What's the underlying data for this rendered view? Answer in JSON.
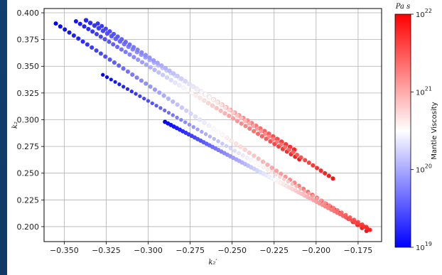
{
  "chart_data": {
    "type": "scatter",
    "xlabel": "k₂′",
    "ylabel": "k₂",
    "xlim": [
      -0.362,
      -0.161
    ],
    "ylim": [
      0.186,
      0.404
    ],
    "xticks": [
      -0.35,
      -0.325,
      -0.3,
      -0.275,
      -0.25,
      -0.225,
      -0.2,
      -0.175
    ],
    "xtick_labels": [
      "−0.350",
      "−0.325",
      "−0.300",
      "−0.275",
      "−0.250",
      "−0.225",
      "−0.200",
      "−0.175"
    ],
    "yticks": [
      0.2,
      0.225,
      0.25,
      0.275,
      0.3,
      0.325,
      0.35,
      0.375,
      0.4
    ],
    "ytick_labels": [
      "0.200",
      "0.225",
      "0.250",
      "0.275",
      "0.300",
      "0.325",
      "0.350",
      "0.375",
      "0.400"
    ],
    "grid": true,
    "colorbar": {
      "label": "Mantle Viscosity",
      "unit": "Pa s",
      "scale": "log",
      "range": [
        1e+19,
        1e+22
      ],
      "tick_exponents": [
        "22",
        "21",
        "20",
        "19"
      ],
      "colormap": [
        "#0000ff",
        "#ffffff",
        "#ff0000"
      ]
    },
    "series": [
      {
        "x_start": -0.355,
        "y_start": 0.39,
        "x_end": -0.17,
        "y_end": 0.196,
        "log_visc_start": 19.0,
        "log_visc_end": 21.9,
        "count": 70,
        "radius": 3.0
      },
      {
        "x_start": -0.343,
        "y_start": 0.392,
        "x_end": -0.21,
        "y_end": 0.263,
        "log_visc_start": 19.1,
        "log_visc_end": 21.9,
        "count": 55,
        "radius": 3.0
      },
      {
        "x_start": -0.337,
        "y_start": 0.393,
        "x_end": -0.213,
        "y_end": 0.272,
        "log_visc_start": 19.2,
        "log_visc_end": 21.8,
        "count": 50,
        "radius": 3.2
      },
      {
        "x_start": -0.33,
        "y_start": 0.39,
        "x_end": -0.19,
        "y_end": 0.245,
        "log_visc_start": 19.3,
        "log_visc_end": 21.9,
        "count": 60,
        "radius": 3.0
      },
      {
        "x_start": -0.327,
        "y_start": 0.342,
        "x_end": -0.17,
        "y_end": 0.2,
        "log_visc_start": 19.0,
        "log_visc_end": 21.6,
        "count": 65,
        "radius": 2.6
      },
      {
        "x_start": -0.29,
        "y_start": 0.298,
        "x_end": -0.168,
        "y_end": 0.197,
        "log_visc_start": 19.0,
        "log_visc_end": 21.8,
        "count": 70,
        "radius": 3.0
      }
    ]
  }
}
